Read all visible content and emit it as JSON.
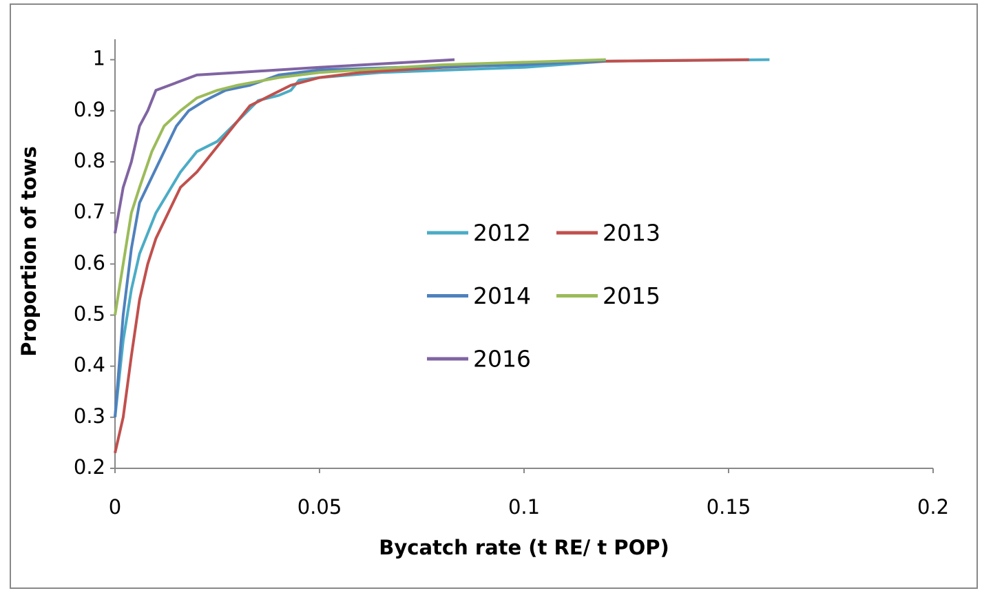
{
  "chart_data": {
    "type": "line",
    "x_label": "Bycatch rate (t RE/ t POP)",
    "y_label": "Proportion of tows",
    "xlim": [
      0,
      0.2
    ],
    "xticks": [
      0,
      0.05,
      0.1,
      0.15,
      0.2
    ],
    "ylim": [
      0.2,
      1.04
    ],
    "yticks": [
      0.2,
      0.3,
      0.4,
      0.5,
      0.6,
      0.7,
      0.8,
      0.9,
      1
    ],
    "grid": false,
    "series": [
      {
        "name": "2012",
        "color": "#4bacc6",
        "x": [
          0,
          0.002,
          0.004,
          0.006,
          0.01,
          0.013,
          0.016,
          0.02,
          0.025,
          0.03,
          0.035,
          0.04,
          0.043,
          0.045,
          0.05,
          0.065,
          0.1,
          0.12,
          0.16
        ],
        "values": [
          0.3,
          0.45,
          0.55,
          0.62,
          0.7,
          0.74,
          0.78,
          0.82,
          0.84,
          0.88,
          0.92,
          0.93,
          0.94,
          0.96,
          0.965,
          0.975,
          0.985,
          0.997,
          1
        ]
      },
      {
        "name": "2013",
        "color": "#c0504d",
        "x": [
          0,
          0.002,
          0.004,
          0.006,
          0.008,
          0.01,
          0.013,
          0.016,
          0.02,
          0.025,
          0.03,
          0.033,
          0.038,
          0.043,
          0.05,
          0.06,
          0.08,
          0.12,
          0.155
        ],
        "values": [
          0.23,
          0.3,
          0.42,
          0.53,
          0.6,
          0.65,
          0.7,
          0.75,
          0.78,
          0.83,
          0.88,
          0.91,
          0.93,
          0.95,
          0.965,
          0.975,
          0.985,
          0.997,
          1
        ]
      },
      {
        "name": "2014",
        "color": "#4f81bd",
        "x": [
          0,
          0.002,
          0.004,
          0.006,
          0.009,
          0.012,
          0.015,
          0.018,
          0.022,
          0.027,
          0.033,
          0.04,
          0.05,
          0.07,
          0.1,
          0.12
        ],
        "values": [
          0.3,
          0.5,
          0.63,
          0.72,
          0.77,
          0.82,
          0.87,
          0.9,
          0.92,
          0.94,
          0.95,
          0.97,
          0.98,
          0.985,
          0.99,
          0.998
        ]
      },
      {
        "name": "2015",
        "color": "#9bbb59",
        "x": [
          0,
          0.002,
          0.004,
          0.006,
          0.009,
          0.012,
          0.016,
          0.02,
          0.025,
          0.03,
          0.04,
          0.05,
          0.08,
          0.12
        ],
        "values": [
          0.5,
          0.6,
          0.7,
          0.75,
          0.82,
          0.87,
          0.9,
          0.925,
          0.94,
          0.95,
          0.965,
          0.975,
          0.99,
          1
        ]
      },
      {
        "name": "2016",
        "color": "#8064a2",
        "x": [
          0,
          0.002,
          0.004,
          0.006,
          0.008,
          0.01,
          0.015,
          0.02,
          0.03,
          0.05,
          0.083
        ],
        "values": [
          0.66,
          0.75,
          0.8,
          0.87,
          0.9,
          0.94,
          0.955,
          0.97,
          0.975,
          0.985,
          1
        ]
      }
    ]
  }
}
